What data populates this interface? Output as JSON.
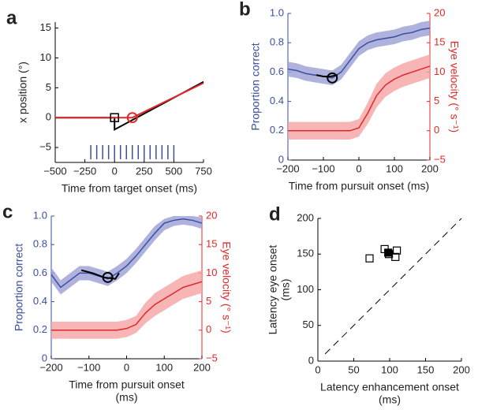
{
  "chart_data": [
    {
      "type": "line",
      "panel_label": "a",
      "xlabel": [
        "Time from target onset (ms)"
      ],
      "ylabel": "x position (°)",
      "xlim": [
        -500,
        750
      ],
      "xticks": [
        {
          "value": -500,
          "label": "−500"
        },
        {
          "value": -250,
          "label": "−250"
        },
        0,
        250,
        500,
        750
      ],
      "ylim": [
        -7.5,
        16
      ],
      "yticks": [
        {
          "value": -5,
          "label": "−5"
        },
        0,
        5,
        10,
        15
      ],
      "series": [
        {
          "color": "#000000",
          "x": [
            -500,
            0,
            0,
            750
          ],
          "values": [
            0,
            0,
            -2,
            6
          ]
        },
        {
          "color": "#e0282a",
          "x": [
            -500,
            150,
            750
          ],
          "values": [
            0,
            0,
            5.8
          ]
        }
      ],
      "markers": [
        {
          "shape": "square",
          "color": "#000000",
          "x": 0,
          "y": 0
        },
        {
          "shape": "circle",
          "color": "#e0282a",
          "x": 150,
          "y": 0
        }
      ],
      "pulse_times": [
        -200,
        -150,
        -100,
        -50,
        0,
        50,
        100,
        150,
        200,
        250,
        300,
        350,
        400,
        450,
        500
      ],
      "pulse_color": "#3a4fa0"
    },
    {
      "type": "line",
      "panel_label": "b",
      "xlabel": [
        "Time from pursuit onset (ms)"
      ],
      "ylabel": "Proportion correct",
      "y2label": "Eye velocity (° s⁻¹)",
      "ycolor": "#3a4fa0",
      "y2color": "#e0282a",
      "xlim": [
        -200,
        200
      ],
      "xticks": [
        {
          "value": -200,
          "label": "−200"
        },
        {
          "value": -100,
          "label": "−100"
        },
        0,
        100,
        200
      ],
      "ylim": [
        0,
        1
      ],
      "yticks": [
        0,
        0.2,
        0.4,
        0.6,
        0.8,
        {
          "value": 1,
          "label": "1.0"
        }
      ],
      "y2lim": [
        -5,
        20
      ],
      "y2ticks": [
        {
          "value": -5,
          "label": "−5"
        },
        0,
        5,
        10,
        15,
        20
      ],
      "x": [
        -200,
        -175,
        -150,
        -125,
        -100,
        -75,
        -50,
        -25,
        0,
        25,
        50,
        75,
        100,
        125,
        150,
        175,
        200
      ],
      "series": [
        {
          "color": "#3a4fa0",
          "band_color": "#9c9fd6",
          "values": [
            0.62,
            0.61,
            0.59,
            0.58,
            0.57,
            0.56,
            0.6,
            0.68,
            0.76,
            0.8,
            0.82,
            0.83,
            0.84,
            0.86,
            0.87,
            0.89,
            0.9
          ],
          "lower": [
            0.57,
            0.56,
            0.54,
            0.53,
            0.52,
            0.51,
            0.55,
            0.63,
            0.71,
            0.75,
            0.77,
            0.78,
            0.79,
            0.81,
            0.82,
            0.84,
            0.85
          ],
          "upper": [
            0.67,
            0.66,
            0.64,
            0.63,
            0.62,
            0.61,
            0.65,
            0.73,
            0.81,
            0.85,
            0.87,
            0.88,
            0.89,
            0.91,
            0.92,
            0.94,
            0.95
          ]
        },
        {
          "color": "#e0282a",
          "band_color": "#f5a3a3",
          "axis": "y2",
          "values": [
            0,
            0,
            0,
            0,
            0,
            0,
            0,
            0,
            0.5,
            3,
            6,
            7.8,
            8.8,
            9.5,
            10,
            10.5,
            11
          ],
          "lower": [
            -1.5,
            -1.5,
            -1.5,
            -1.5,
            -1.5,
            -1.5,
            -1.5,
            -1.5,
            -1,
            1.2,
            4,
            5.8,
            6.8,
            7.5,
            8,
            8.5,
            9
          ],
          "upper": [
            1.5,
            1.5,
            1.5,
            1.5,
            1.5,
            1.5,
            1.5,
            1.5,
            2,
            4.8,
            8,
            9.8,
            10.8,
            11.5,
            12,
            12.5,
            13
          ]
        },
        {
          "color": "#000000",
          "x": [
            -120,
            -100,
            -80,
            -60
          ],
          "values": [
            0.58,
            0.57,
            0.57,
            0.58
          ]
        }
      ],
      "markers": [
        {
          "shape": "circle",
          "color": "#000000",
          "x": -75,
          "y": 0.56
        }
      ]
    },
    {
      "type": "line",
      "panel_label": "c",
      "xlabel": [
        "Time from pursuit onset",
        "(ms)"
      ],
      "ylabel": "Proportion correct",
      "y2label": "Eye velocity (° s⁻¹)",
      "ycolor": "#3a4fa0",
      "y2color": "#e0282a",
      "xlim": [
        -200,
        200
      ],
      "xticks": [
        {
          "value": -200,
          "label": "−200"
        },
        {
          "value": -100,
          "label": "−100"
        },
        0,
        100,
        200
      ],
      "ylim": [
        0,
        1
      ],
      "yticks": [
        0,
        0.2,
        0.4,
        0.6,
        0.8,
        {
          "value": 1,
          "label": "1.0"
        }
      ],
      "y2lim": [
        -5,
        20
      ],
      "y2ticks": [
        {
          "value": -5,
          "label": "−5"
        },
        0,
        5,
        10,
        15,
        20
      ],
      "x": [
        -200,
        -175,
        -150,
        -125,
        -100,
        -75,
        -50,
        -25,
        0,
        25,
        50,
        75,
        100,
        125,
        150,
        175,
        200
      ],
      "series": [
        {
          "color": "#3a4fa0",
          "band_color": "#9c9fd6",
          "values": [
            0.59,
            0.5,
            0.55,
            0.6,
            0.6,
            0.58,
            0.56,
            0.6,
            0.65,
            0.72,
            0.8,
            0.88,
            0.95,
            0.97,
            0.98,
            0.97,
            0.95
          ],
          "lower": [
            0.54,
            0.45,
            0.5,
            0.55,
            0.55,
            0.53,
            0.51,
            0.55,
            0.6,
            0.67,
            0.75,
            0.83,
            0.9,
            0.93,
            0.94,
            0.93,
            0.91
          ],
          "upper": [
            0.64,
            0.55,
            0.6,
            0.65,
            0.65,
            0.63,
            0.61,
            0.65,
            0.7,
            0.77,
            0.85,
            0.93,
            0.98,
            1,
            1,
            1,
            0.99
          ]
        },
        {
          "color": "#e0282a",
          "band_color": "#f5a3a3",
          "axis": "y2",
          "values": [
            0,
            0,
            0,
            0,
            0,
            0,
            0,
            0,
            0.3,
            1,
            3,
            4.5,
            5.5,
            6.5,
            7.5,
            8,
            8.5
          ],
          "lower": [
            -1.5,
            -1.5,
            -1.5,
            -1.5,
            -1.5,
            -1.5,
            -1.5,
            -1.5,
            -1.2,
            -0.5,
            1.2,
            2.5,
            3.5,
            4.5,
            5.5,
            6,
            6.5
          ],
          "upper": [
            1.5,
            1.5,
            1.5,
            1.5,
            1.5,
            1.5,
            1.5,
            1.5,
            1.8,
            2.5,
            4.8,
            6.5,
            7.5,
            8.5,
            9.5,
            10,
            10.5
          ]
        },
        {
          "color": "#000000",
          "x": [
            -120,
            -90,
            -60,
            -30,
            -20
          ],
          "values": [
            0.62,
            0.6,
            0.57,
            0.56,
            0.6
          ]
        }
      ],
      "markers": [
        {
          "shape": "circle",
          "color": "#000000",
          "x": -50,
          "y": 0.57
        }
      ]
    },
    {
      "type": "scatter",
      "panel_label": "d",
      "xlabel": [
        "Latency enhancement onset",
        "(ms)"
      ],
      "ylabel": [
        "Latency eye onset",
        "(ms)"
      ],
      "xlim": [
        0,
        200
      ],
      "xticks": [
        0,
        50,
        100,
        150,
        200
      ],
      "ylim": [
        0,
        200
      ],
      "yticks": [
        0,
        50,
        100,
        150,
        200
      ],
      "reference_line": {
        "x": [
          10,
          200
        ],
        "y": [
          10,
          200
        ]
      },
      "series": [
        {
          "color": "#000000",
          "filled": false,
          "x": [
            72,
            93,
            110,
            108,
            99
          ],
          "values": [
            144,
            157,
            155,
            146,
            150
          ]
        },
        {
          "color": "#000000",
          "filled": true,
          "x": [
            98
          ],
          "values": [
            152
          ]
        }
      ]
    }
  ]
}
